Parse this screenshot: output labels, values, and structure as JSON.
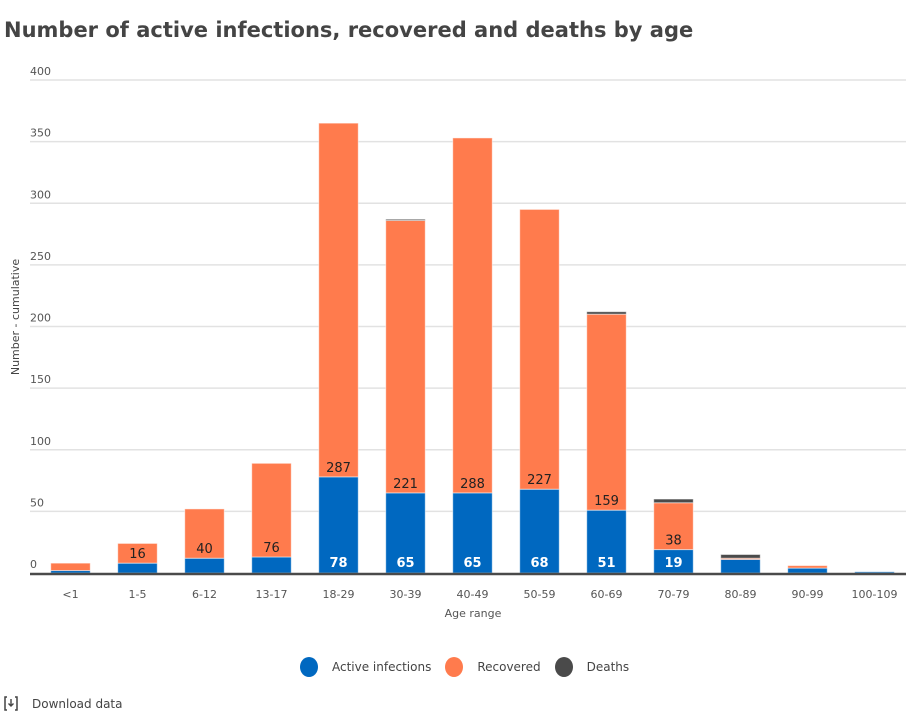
{
  "title": "Number of active infections, recovered and deaths by age",
  "legend": [
    {
      "name": "Active infections",
      "color": "#0068c0"
    },
    {
      "name": "Recovered",
      "color": "#ff7b4d"
    },
    {
      "name": "Deaths",
      "color": "#4a4a4a"
    }
  ],
  "download_label": "Download data",
  "chart_data": {
    "type": "bar",
    "stacked": true,
    "title": "Number of active infections, recovered and deaths by age",
    "xlabel": "Age range",
    "ylabel": "Number - cumulative",
    "ylim": [
      0,
      400
    ],
    "yticks": [
      0,
      50,
      100,
      150,
      200,
      250,
      300,
      350,
      400
    ],
    "grid": true,
    "legend_position": "bottom",
    "categories": [
      "<1",
      "1-5",
      "6-12",
      "13-17",
      "18-29",
      "30-39",
      "40-49",
      "50-59",
      "60-69",
      "70-79",
      "80-89",
      "90-99",
      "100-109"
    ],
    "series": [
      {
        "name": "Active infections",
        "color": "#0068c0",
        "values": [
          2,
          8,
          12,
          13,
          78,
          65,
          65,
          68,
          51,
          19,
          11,
          4,
          1
        ],
        "labels": [
          null,
          null,
          null,
          null,
          "78",
          "65",
          "65",
          "68",
          "51",
          "19",
          null,
          null,
          null
        ]
      },
      {
        "name": "Recovered",
        "color": "#ff7b4d",
        "values": [
          6,
          16,
          40,
          76,
          287,
          221,
          288,
          227,
          159,
          38,
          1,
          2,
          0
        ],
        "labels": [
          null,
          "16",
          "40",
          "76",
          "287",
          "221",
          "288",
          "227",
          "159",
          "38",
          null,
          null,
          null
        ]
      },
      {
        "name": "Deaths",
        "color": "#4a4a4a",
        "values": [
          0,
          0,
          0,
          0,
          0,
          1,
          0,
          0,
          2,
          3,
          3,
          0,
          0
        ],
        "labels": [
          null,
          null,
          null,
          null,
          null,
          null,
          null,
          null,
          null,
          null,
          null,
          null,
          null
        ]
      }
    ]
  }
}
